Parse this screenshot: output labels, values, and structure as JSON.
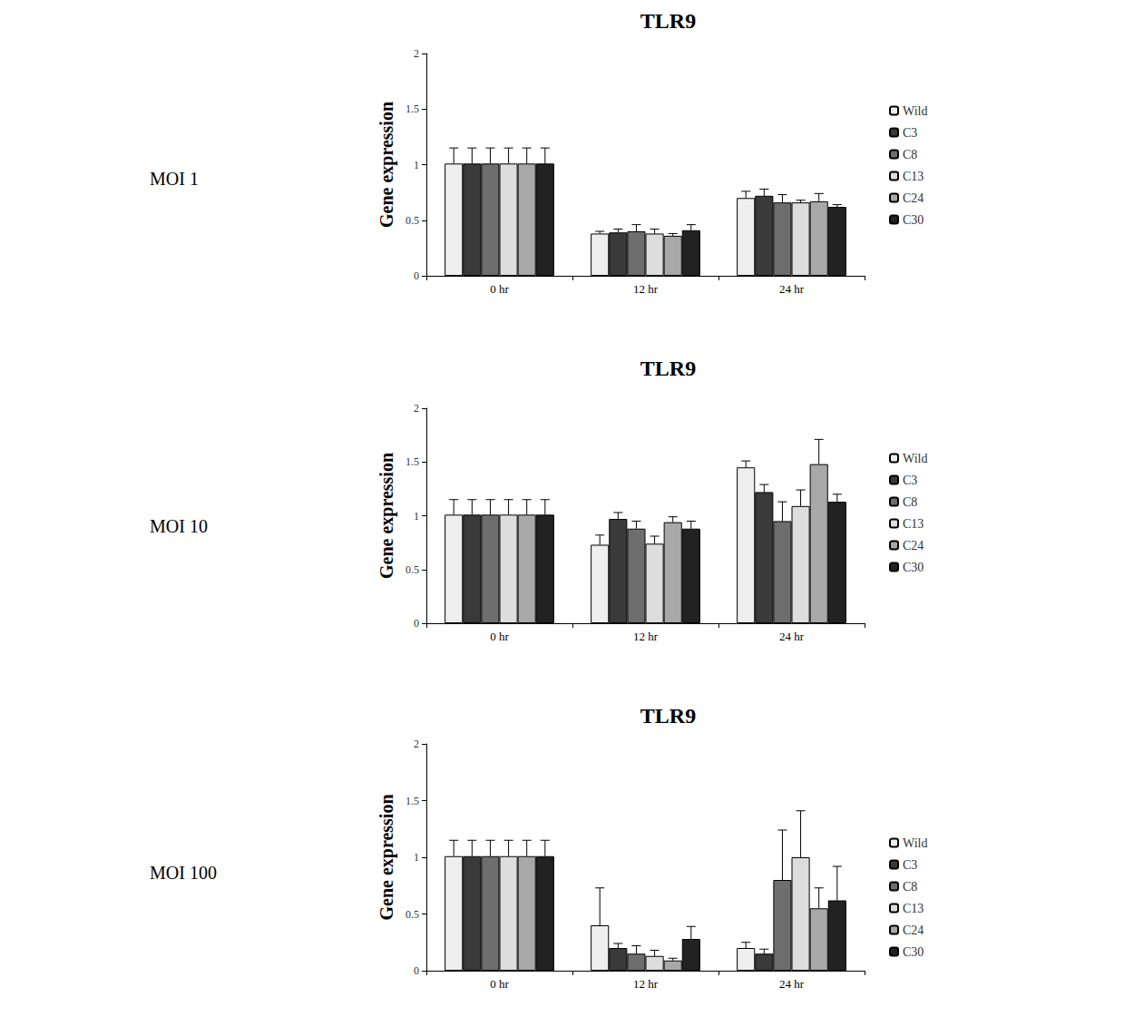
{
  "chart_data": [
    {
      "type": "bar",
      "title": "TLR9",
      "annotations": [
        "MOI 1"
      ],
      "y_label": "Gene expression",
      "categories": [
        "0 hr",
        "12 hr",
        "24 hr"
      ],
      "ylim": [
        0,
        2
      ],
      "yticks": [
        0,
        0.5,
        1,
        1.5,
        2
      ],
      "grid": false,
      "legend": "right",
      "series": [
        {
          "name": "Wild",
          "color": "#eeeeee",
          "values": [
            1.01,
            0.38,
            0.7
          ],
          "errors": [
            0.14,
            0.02,
            0.06
          ]
        },
        {
          "name": "C3",
          "color": "#3a3a3a",
          "values": [
            1.01,
            0.39,
            0.72
          ],
          "errors": [
            0.14,
            0.03,
            0.06
          ]
        },
        {
          "name": "C8",
          "color": "#6e6e6e",
          "values": [
            1.01,
            0.4,
            0.66
          ],
          "errors": [
            0.14,
            0.06,
            0.07
          ]
        },
        {
          "name": "C13",
          "color": "#dddddd",
          "values": [
            1.01,
            0.38,
            0.66
          ],
          "errors": [
            0.14,
            0.04,
            0.02
          ]
        },
        {
          "name": "C24",
          "color": "#a8a8a8",
          "values": [
            1.01,
            0.36,
            0.67
          ],
          "errors": [
            0.14,
            0.02,
            0.07
          ]
        },
        {
          "name": "C30",
          "color": "#222222",
          "values": [
            1.01,
            0.41,
            0.62
          ],
          "errors": [
            0.14,
            0.05,
            0.02
          ]
        }
      ]
    },
    {
      "type": "bar",
      "title": "TLR9",
      "annotations": [
        "MOI 10"
      ],
      "y_label": "Gene expression",
      "categories": [
        "0 hr",
        "12 hr",
        "24 hr"
      ],
      "ylim": [
        0,
        2
      ],
      "yticks": [
        0,
        0.5,
        1,
        1.5,
        2
      ],
      "grid": false,
      "legend": "right",
      "series": [
        {
          "name": "Wild",
          "color": "#eeeeee",
          "values": [
            1.01,
            0.73,
            1.45
          ],
          "errors": [
            0.14,
            0.09,
            0.06
          ]
        },
        {
          "name": "C3",
          "color": "#3a3a3a",
          "values": [
            1.01,
            0.97,
            1.22
          ],
          "errors": [
            0.14,
            0.06,
            0.07
          ]
        },
        {
          "name": "C8",
          "color": "#6e6e6e",
          "values": [
            1.01,
            0.88,
            0.95
          ],
          "errors": [
            0.14,
            0.07,
            0.18
          ]
        },
        {
          "name": "C13",
          "color": "#dddddd",
          "values": [
            1.01,
            0.74,
            1.09
          ],
          "errors": [
            0.14,
            0.07,
            0.15
          ]
        },
        {
          "name": "C24",
          "color": "#a8a8a8",
          "values": [
            1.01,
            0.94,
            1.48
          ],
          "errors": [
            0.14,
            0.05,
            0.23
          ]
        },
        {
          "name": "C30",
          "color": "#222222",
          "values": [
            1.01,
            0.88,
            1.13
          ],
          "errors": [
            0.14,
            0.07,
            0.07
          ]
        }
      ]
    },
    {
      "type": "bar",
      "title": "TLR9",
      "annotations": [
        "MOI 100"
      ],
      "y_label": "Gene expression",
      "categories": [
        "0 hr",
        "12 hr",
        "24 hr"
      ],
      "ylim": [
        0,
        2
      ],
      "yticks": [
        0,
        0.5,
        1,
        1.5,
        2
      ],
      "grid": false,
      "legend": "right",
      "series": [
        {
          "name": "Wild",
          "color": "#eeeeee",
          "values": [
            1.01,
            0.4,
            0.2
          ],
          "errors": [
            0.14,
            0.33,
            0.05
          ]
        },
        {
          "name": "C3",
          "color": "#3a3a3a",
          "values": [
            1.01,
            0.2,
            0.15
          ],
          "errors": [
            0.14,
            0.04,
            0.04
          ]
        },
        {
          "name": "C8",
          "color": "#6e6e6e",
          "values": [
            1.01,
            0.15,
            0.8
          ],
          "errors": [
            0.14,
            0.07,
            0.44
          ]
        },
        {
          "name": "C13",
          "color": "#dddddd",
          "values": [
            1.01,
            0.13,
            1.0
          ],
          "errors": [
            0.14,
            0.05,
            0.41
          ]
        },
        {
          "name": "C24",
          "color": "#a8a8a8",
          "values": [
            1.01,
            0.09,
            0.55
          ],
          "errors": [
            0.14,
            0.02,
            0.18
          ]
        },
        {
          "name": "C30",
          "color": "#222222",
          "values": [
            1.01,
            0.28,
            0.62
          ],
          "errors": [
            0.14,
            0.11,
            0.3
          ]
        }
      ]
    }
  ]
}
